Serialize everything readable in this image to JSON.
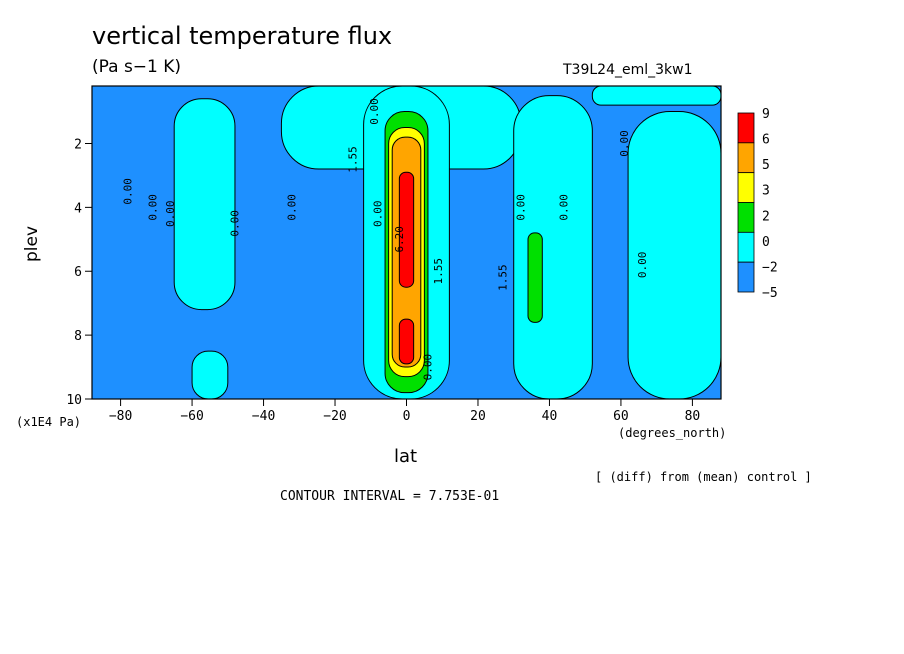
{
  "title": "vertical temperature flux",
  "units": "(Pa s−1 K)",
  "run_id": "T39L24_eml_3kw1",
  "x_units_label": "(degrees_north)",
  "y_units_label": "(x1E4 Pa)",
  "diff_note": "[ (diff) from (mean) control ]",
  "contour_interval_text": "CONTOUR INTERVAL = 7.753E-01",
  "chart_data": {
    "type": "heatmap",
    "title": "vertical temperature flux",
    "xlabel": "lat",
    "ylabel": "plev",
    "xlim": [
      -88,
      88
    ],
    "ylim": [
      10,
      0.2
    ],
    "x_ticks": [
      -80,
      -60,
      -40,
      -20,
      0,
      20,
      40,
      60,
      80
    ],
    "y_ticks": [
      2,
      4,
      6,
      8,
      10
    ],
    "colorbar": {
      "levels": [
        "9",
        "6",
        "5",
        "3",
        "2",
        "0",
        "−2",
        "−5"
      ],
      "colors": [
        "#ff0000",
        "#ffa500",
        "#ffff00",
        "#00e000",
        "#00ffff",
        "#1e90ff"
      ]
    },
    "band_colors": {
      "neg": "#1e90ff",
      "low": "#00ffff",
      "mid": "#00e000",
      "yel": "#ffff00",
      "ora": "#ffa500",
      "red": "#ff0000"
    },
    "regions": [
      {
        "band": "low",
        "x": [
          -65,
          -48
        ],
        "y": [
          0.6,
          7.2
        ]
      },
      {
        "band": "low",
        "x": [
          -60,
          -50
        ],
        "y": [
          8.5,
          10
        ]
      },
      {
        "band": "low",
        "x": [
          -35,
          32
        ],
        "y": [
          0.2,
          2.8
        ]
      },
      {
        "band": "low",
        "x": [
          -12,
          12
        ],
        "y": [
          0.2,
          10
        ]
      },
      {
        "band": "low",
        "x": [
          30,
          52
        ],
        "y": [
          0.5,
          10
        ]
      },
      {
        "band": "low",
        "x": [
          52,
          88
        ],
        "y": [
          0.2,
          0.8
        ]
      },
      {
        "band": "low",
        "x": [
          62,
          88
        ],
        "y": [
          1.0,
          10
        ]
      },
      {
        "band": "mid",
        "x": [
          -6,
          6
        ],
        "y": [
          1.0,
          9.8
        ]
      },
      {
        "band": "yel",
        "x": [
          -5,
          5
        ],
        "y": [
          1.5,
          9.3
        ]
      },
      {
        "band": "ora",
        "x": [
          -4,
          4
        ],
        "y": [
          1.8,
          9.0
        ]
      },
      {
        "band": "red",
        "x": [
          -2,
          2
        ],
        "y": [
          2.9,
          6.5
        ]
      },
      {
        "band": "red",
        "x": [
          -2,
          2
        ],
        "y": [
          7.5,
          8.9
        ]
      },
      {
        "band": "mid",
        "x": [
          34,
          38
        ],
        "y": [
          4.8,
          7.6
        ]
      }
    ],
    "contour_labels": [
      {
        "text": "0.00",
        "x": -77,
        "y": 3.5
      },
      {
        "text": "0.00",
        "x": -70,
        "y": 4.0
      },
      {
        "text": "0.00",
        "x": -65,
        "y": 4.2
      },
      {
        "text": "0.00",
        "x": -47,
        "y": 4.5
      },
      {
        "text": "0.00",
        "x": -31,
        "y": 4.0
      },
      {
        "text": "1.55",
        "x": -14,
        "y": 2.5
      },
      {
        "text": "0.00",
        "x": -8,
        "y": 1.0
      },
      {
        "text": "0.00",
        "x": -7,
        "y": 4.2
      },
      {
        "text": "6.20",
        "x": -1,
        "y": 5.0
      },
      {
        "text": "1.55",
        "x": 10,
        "y": 6.0
      },
      {
        "text": "0.00",
        "x": 7,
        "y": 9.0
      },
      {
        "text": "1.55",
        "x": 28,
        "y": 6.2
      },
      {
        "text": "0.00",
        "x": 33,
        "y": 4.0
      },
      {
        "text": "0.00",
        "x": 45,
        "y": 4.0
      },
      {
        "text": "0.00",
        "x": 62,
        "y": 2.0
      },
      {
        "text": "0.00",
        "x": 67,
        "y": 5.8
      }
    ]
  }
}
